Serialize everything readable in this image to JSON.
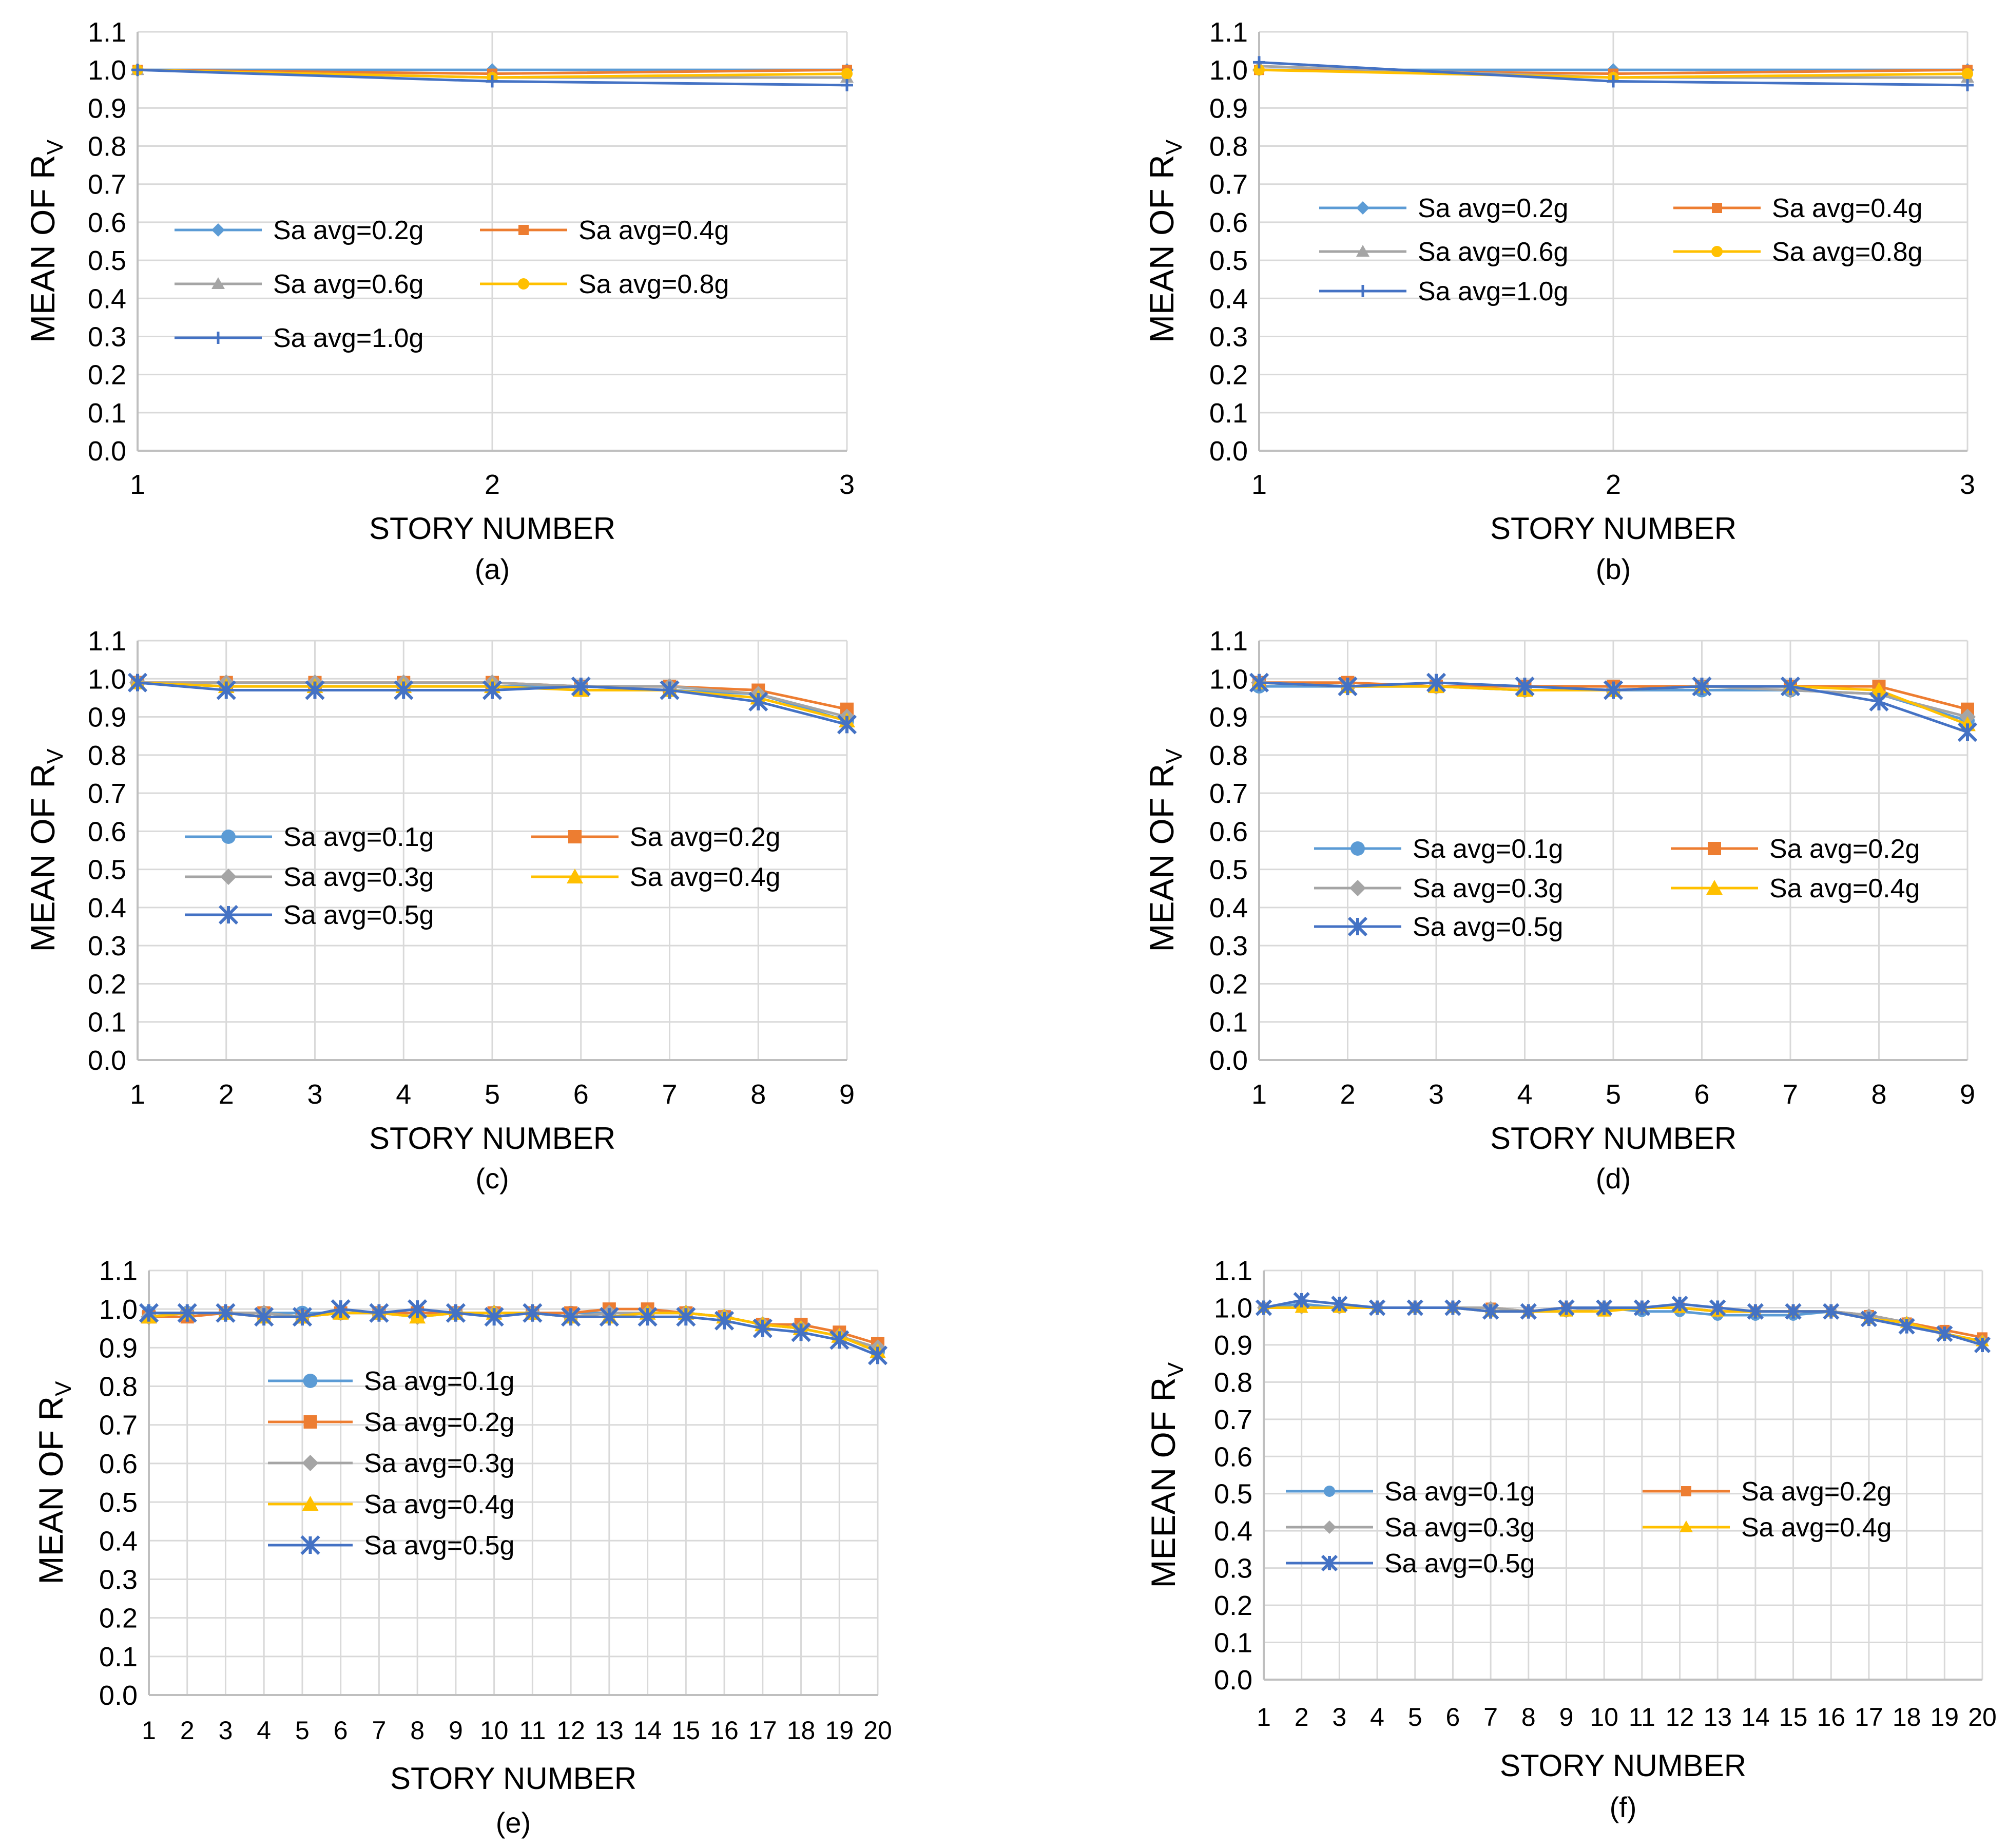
{
  "colors": {
    "c1": "#5B9BD5",
    "c2": "#ED7D31",
    "c3": "#A5A5A5",
    "c4": "#FFC000",
    "c5": "#4472C4",
    "grid": "#D9D9D9",
    "axis": "#BFBFBF"
  },
  "chart_data": [
    {
      "id": "a",
      "type": "line",
      "caption": "(a)",
      "xlabel": "STORY NUMBER",
      "ylabel": "MEAN OF R",
      "ylabel_sub": "V",
      "categories": [
        "1",
        "2",
        "3"
      ],
      "ylim": [
        0,
        1.1
      ],
      "yticks": [
        "0.0",
        "0.1",
        "0.2",
        "0.3",
        "0.4",
        "0.5",
        "0.6",
        "0.7",
        "0.8",
        "0.9",
        "1.0",
        "1.1"
      ],
      "series": [
        {
          "name": "Sa avg=0.2g",
          "marker": "diamond",
          "values": [
            1.0,
            1.0,
            1.0
          ]
        },
        {
          "name": "Sa avg=0.4g",
          "marker": "square",
          "values": [
            1.0,
            0.99,
            1.0
          ]
        },
        {
          "name": "Sa avg=0.6g",
          "marker": "triangle",
          "values": [
            1.0,
            0.98,
            0.98
          ]
        },
        {
          "name": "Sa avg=0.8g",
          "marker": "circle",
          "values": [
            1.0,
            0.98,
            0.99
          ]
        },
        {
          "name": "Sa avg=1.0g",
          "marker": "plus",
          "values": [
            1.0,
            0.97,
            0.96
          ]
        }
      ]
    },
    {
      "id": "b",
      "type": "line",
      "caption": "(b)",
      "xlabel": "STORY NUMBER",
      "ylabel": "MEAN OF R",
      "ylabel_sub": "V",
      "categories": [
        "1",
        "2",
        "3"
      ],
      "ylim": [
        0,
        1.1
      ],
      "yticks": [
        "0.0",
        "0.1",
        "0.2",
        "0.3",
        "0.4",
        "0.5",
        "0.6",
        "0.7",
        "0.8",
        "0.9",
        "1.0",
        "1.1"
      ],
      "series": [
        {
          "name": "Sa avg=0.2g",
          "marker": "diamond",
          "values": [
            1.0,
            1.0,
            1.0
          ]
        },
        {
          "name": "Sa avg=0.4g",
          "marker": "square",
          "values": [
            1.0,
            0.99,
            1.0
          ]
        },
        {
          "name": "Sa avg=0.6g",
          "marker": "triangle",
          "values": [
            1.01,
            0.98,
            0.98
          ]
        },
        {
          "name": "Sa avg=0.8g",
          "marker": "circle",
          "values": [
            1.0,
            0.98,
            0.99
          ]
        },
        {
          "name": "Sa avg=1.0g",
          "marker": "plus",
          "values": [
            1.02,
            0.97,
            0.96
          ]
        }
      ]
    },
    {
      "id": "c",
      "type": "line",
      "caption": "(c)",
      "xlabel": "STORY NUMBER",
      "ylabel": "MEAN OF R",
      "ylabel_sub": "V",
      "categories": [
        "1",
        "2",
        "3",
        "4",
        "5",
        "6",
        "7",
        "8",
        "9"
      ],
      "ylim": [
        0,
        1.1
      ],
      "yticks": [
        "0.0",
        "0.1",
        "0.2",
        "0.3",
        "0.4",
        "0.5",
        "0.6",
        "0.7",
        "0.8",
        "0.9",
        "1.0",
        "1.1"
      ],
      "series": [
        {
          "name": "Sa avg=0.1g",
          "marker": "circle",
          "values": [
            0.99,
            0.98,
            0.98,
            0.98,
            0.98,
            0.98,
            0.97,
            0.96,
            0.89
          ]
        },
        {
          "name": "Sa avg=0.2g",
          "marker": "square",
          "values": [
            0.99,
            0.99,
            0.99,
            0.99,
            0.99,
            0.98,
            0.98,
            0.97,
            0.92
          ]
        },
        {
          "name": "Sa avg=0.3g",
          "marker": "diamond",
          "values": [
            0.99,
            0.99,
            0.99,
            0.99,
            0.99,
            0.98,
            0.98,
            0.96,
            0.9
          ]
        },
        {
          "name": "Sa avg=0.4g",
          "marker": "triangle",
          "values": [
            0.99,
            0.98,
            0.98,
            0.98,
            0.98,
            0.97,
            0.97,
            0.95,
            0.89
          ]
        },
        {
          "name": "Sa avg=0.5g",
          "marker": "asterisk",
          "values": [
            0.99,
            0.97,
            0.97,
            0.97,
            0.97,
            0.98,
            0.97,
            0.94,
            0.88
          ]
        }
      ]
    },
    {
      "id": "d",
      "type": "line",
      "caption": "(d)",
      "xlabel": "STORY NUMBER",
      "ylabel": "MEAN OF R",
      "ylabel_sub": "V",
      "categories": [
        "1",
        "2",
        "3",
        "4",
        "5",
        "6",
        "7",
        "8",
        "9"
      ],
      "ylim": [
        0,
        1.1
      ],
      "yticks": [
        "0.0",
        "0.1",
        "0.2",
        "0.3",
        "0.4",
        "0.5",
        "0.6",
        "0.7",
        "0.8",
        "0.9",
        "1.0",
        "1.1"
      ],
      "series": [
        {
          "name": "Sa avg=0.1g",
          "marker": "circle",
          "values": [
            0.98,
            0.98,
            0.98,
            0.97,
            0.97,
            0.97,
            0.97,
            0.96,
            0.89
          ]
        },
        {
          "name": "Sa avg=0.2g",
          "marker": "square",
          "values": [
            0.99,
            0.99,
            0.98,
            0.98,
            0.98,
            0.98,
            0.98,
            0.98,
            0.92
          ]
        },
        {
          "name": "Sa avg=0.3g",
          "marker": "diamond",
          "values": [
            0.99,
            0.98,
            0.98,
            0.97,
            0.97,
            0.98,
            0.97,
            0.96,
            0.9
          ]
        },
        {
          "name": "Sa avg=0.4g",
          "marker": "triangle",
          "values": [
            0.99,
            0.98,
            0.98,
            0.97,
            0.97,
            0.98,
            0.98,
            0.97,
            0.88
          ]
        },
        {
          "name": "Sa avg=0.5g",
          "marker": "asterisk",
          "values": [
            0.99,
            0.98,
            0.99,
            0.98,
            0.97,
            0.98,
            0.98,
            0.94,
            0.86
          ]
        }
      ]
    },
    {
      "id": "e",
      "type": "line",
      "caption": "(e)",
      "xlabel": "STORY NUMBER",
      "ylabel": "MEAN OF R",
      "ylabel_sub": "V",
      "categories": [
        "1",
        "2",
        "3",
        "4",
        "5",
        "6",
        "7",
        "8",
        "9",
        "10",
        "11",
        "12",
        "13",
        "14",
        "15",
        "16",
        "17",
        "18",
        "19",
        "20"
      ],
      "ylim": [
        0,
        1.1
      ],
      "yticks": [
        "0.0",
        "0.1",
        "0.2",
        "0.3",
        "0.4",
        "0.5",
        "0.6",
        "0.7",
        "0.8",
        "0.9",
        "1.0",
        "1.1"
      ],
      "series": [
        {
          "name": "Sa avg=0.1g",
          "marker": "circle",
          "values": [
            0.99,
            0.99,
            0.99,
            0.99,
            0.99,
            0.99,
            0.99,
            0.99,
            0.99,
            0.99,
            0.99,
            0.99,
            0.99,
            0.99,
            0.99,
            0.98,
            0.96,
            0.95,
            0.93,
            0.89
          ]
        },
        {
          "name": "Sa avg=0.2g",
          "marker": "square",
          "values": [
            0.98,
            0.98,
            0.99,
            0.99,
            0.98,
            0.99,
            0.99,
            0.99,
            0.99,
            0.99,
            0.99,
            0.99,
            1.0,
            1.0,
            0.99,
            0.98,
            0.96,
            0.96,
            0.94,
            0.91
          ]
        },
        {
          "name": "Sa avg=0.3g",
          "marker": "diamond",
          "values": [
            0.98,
            0.99,
            0.99,
            0.99,
            0.98,
            0.99,
            0.99,
            0.98,
            0.99,
            0.99,
            0.99,
            0.98,
            0.99,
            0.99,
            0.99,
            0.98,
            0.96,
            0.95,
            0.93,
            0.9
          ]
        },
        {
          "name": "Sa avg=0.4g",
          "marker": "triangle",
          "values": [
            0.98,
            0.99,
            0.99,
            0.98,
            0.98,
            0.99,
            0.99,
            0.98,
            0.99,
            0.99,
            0.99,
            0.98,
            0.98,
            0.99,
            0.99,
            0.98,
            0.96,
            0.95,
            0.93,
            0.89
          ]
        },
        {
          "name": "Sa avg=0.5g",
          "marker": "asterisk",
          "values": [
            0.99,
            0.99,
            0.99,
            0.98,
            0.98,
            1.0,
            0.99,
            1.0,
            0.99,
            0.98,
            0.99,
            0.98,
            0.98,
            0.98,
            0.98,
            0.97,
            0.95,
            0.94,
            0.92,
            0.88
          ]
        }
      ]
    },
    {
      "id": "f",
      "type": "line",
      "caption": "(f)",
      "xlabel": "STORY NUMBER",
      "ylabel": "MEEAN OF R",
      "ylabel_sub": "V",
      "categories": [
        "1",
        "2",
        "3",
        "4",
        "5",
        "6",
        "7",
        "8",
        "9",
        "10",
        "11",
        "12",
        "13",
        "14",
        "15",
        "16",
        "17",
        "18",
        "19",
        "20"
      ],
      "ylim": [
        0,
        1.1
      ],
      "yticks": [
        "0.0",
        "0.1",
        "0.2",
        "0.3",
        "0.4",
        "0.5",
        "0.6",
        "0.7",
        "0.8",
        "0.9",
        "1.0",
        "1.1"
      ],
      "series": [
        {
          "name": "Sa avg=0.1g",
          "marker": "circle",
          "values": [
            1.0,
            1.01,
            1.0,
            1.0,
            1.0,
            1.0,
            0.99,
            0.99,
            0.99,
            1.0,
            0.99,
            0.99,
            0.98,
            0.98,
            0.98,
            0.99,
            0.98,
            0.96,
            0.93,
            0.91
          ]
        },
        {
          "name": "Sa avg=0.2g",
          "marker": "square",
          "values": [
            1.0,
            1.0,
            1.0,
            1.0,
            1.0,
            1.0,
            1.0,
            0.99,
            1.0,
            1.0,
            1.0,
            1.0,
            0.99,
            0.99,
            0.99,
            0.99,
            0.98,
            0.96,
            0.94,
            0.92
          ]
        },
        {
          "name": "Sa avg=0.3g",
          "marker": "diamond",
          "values": [
            1.0,
            1.0,
            1.0,
            1.0,
            1.0,
            1.0,
            1.0,
            0.99,
            0.99,
            1.0,
            1.0,
            1.0,
            0.99,
            0.99,
            0.99,
            0.99,
            0.98,
            0.96,
            0.93,
            0.91
          ]
        },
        {
          "name": "Sa avg=0.4g",
          "marker": "triangle",
          "values": [
            1.0,
            1.0,
            1.0,
            1.0,
            1.0,
            1.0,
            0.99,
            0.99,
            0.99,
            0.99,
            1.0,
            1.0,
            0.99,
            0.99,
            0.99,
            0.99,
            0.97,
            0.96,
            0.93,
            0.91
          ]
        },
        {
          "name": "Sa avg=0.5g",
          "marker": "asterisk",
          "values": [
            1.0,
            1.02,
            1.01,
            1.0,
            1.0,
            1.0,
            0.99,
            0.99,
            1.0,
            1.0,
            1.0,
            1.01,
            1.0,
            0.99,
            0.99,
            0.99,
            0.97,
            0.95,
            0.93,
            0.9
          ]
        }
      ]
    }
  ]
}
